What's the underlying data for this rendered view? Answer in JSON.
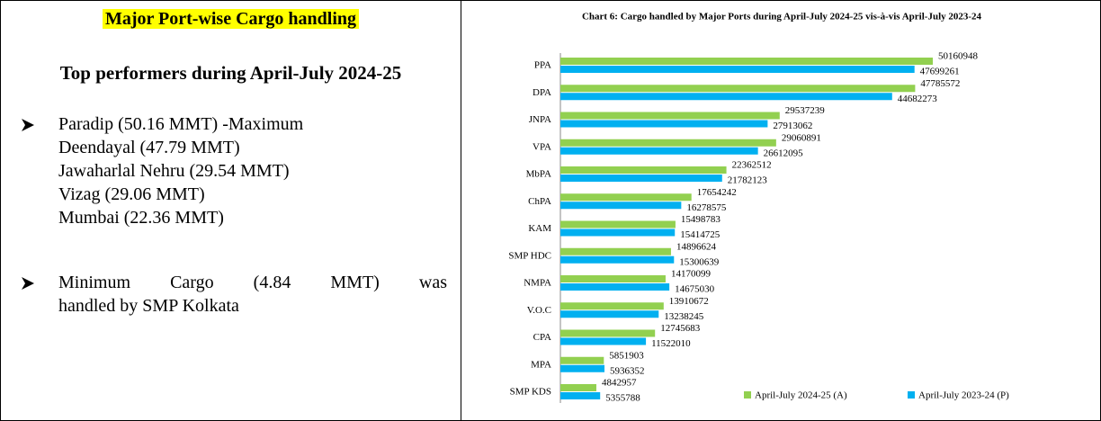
{
  "left": {
    "title": "Major Port-wise Cargo handling",
    "heading": "Top performers during April-July 2024-25",
    "bullets": [
      [
        "Paradip (50.16 MMT) -Maximum",
        "Deendayal (47.79 MMT)",
        "Jawaharlal Nehru (29.54 MMT)",
        "Vizag (29.06 MMT)",
        "Mumbai (22.36 MMT)"
      ],
      [
        "Minimum Cargo (4.84 MMT) was",
        "handled by SMP Kolkata"
      ]
    ]
  },
  "chart_data": {
    "type": "hbar",
    "title": "Chart 6: Cargo handled by Major Ports during April-July 2024-25 vis-à-vis April-July 2023-24",
    "categories": [
      "PPA",
      "DPA",
      "JNPA",
      "VPA",
      "MbPA",
      "ChPA",
      "KAM",
      "SMP HDC",
      "NMPA",
      "V.O.C",
      "CPA",
      "MPA",
      "SMP KDS"
    ],
    "series": [
      {
        "name": "April-July 2024-25 (A)",
        "color": "#92d050",
        "values": [
          50160948,
          47785572,
          29537239,
          29060891,
          22362512,
          17654242,
          15498783,
          14896624,
          14170099,
          13910672,
          12745683,
          5851903,
          4842957
        ]
      },
      {
        "name": "April-July 2023-24 (P)",
        "color": "#00b0f0",
        "values": [
          47699261,
          44682273,
          27913062,
          26612095,
          21782123,
          16278575,
          15414725,
          15300639,
          14675030,
          13238245,
          11522010,
          5936352,
          5355788
        ]
      }
    ],
    "legend": "bottom-right"
  }
}
